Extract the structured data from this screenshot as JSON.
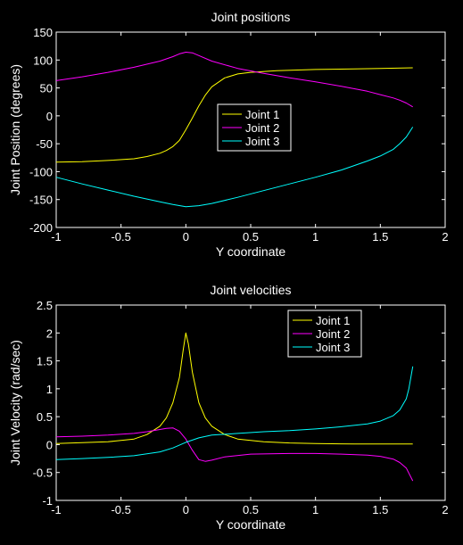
{
  "colors": {
    "background": "#000000",
    "axes": "#ffffff",
    "joint1": "#ffff00",
    "joint2": "#ff00ff",
    "joint3": "#00ffff"
  },
  "chart_data": [
    {
      "type": "line",
      "title": "Joint positions",
      "xlabel": "Y coordinate",
      "ylabel": "Joint Position (degrees)",
      "xlim": [
        -1,
        2
      ],
      "ylim": [
        -200,
        150
      ],
      "xticks": [
        -1,
        -0.5,
        0,
        0.5,
        1,
        1.5,
        2
      ],
      "yticks": [
        -200,
        -150,
        -100,
        -50,
        0,
        50,
        100,
        150
      ],
      "xtick_labels": [
        "-1",
        "-0.5",
        "0",
        "0.5",
        "1",
        "1.5",
        "2"
      ],
      "ytick_labels": [
        "-200",
        "-150",
        "-100",
        "-50",
        "0",
        "50",
        "100",
        "150"
      ],
      "legend": "center",
      "series": [
        {
          "name": "Joint 1",
          "color": "#ffff00",
          "x": [
            -1,
            -0.8,
            -0.6,
            -0.4,
            -0.3,
            -0.2,
            -0.15,
            -0.1,
            -0.05,
            0,
            0.05,
            0.1,
            0.15,
            0.2,
            0.3,
            0.4,
            0.5,
            0.7,
            1.0,
            1.3,
            1.5,
            1.75
          ],
          "y": [
            -83,
            -82,
            -80,
            -77,
            -73,
            -67,
            -62,
            -55,
            -44,
            -25,
            -4,
            18,
            37,
            52,
            68,
            75,
            78,
            81,
            83,
            84,
            85,
            86
          ]
        },
        {
          "name": "Joint 2",
          "color": "#ff00ff",
          "x": [
            -1,
            -0.8,
            -0.6,
            -0.4,
            -0.2,
            -0.1,
            -0.05,
            0,
            0.05,
            0.1,
            0.2,
            0.4,
            0.6,
            0.8,
            1.0,
            1.2,
            1.4,
            1.5,
            1.6,
            1.65,
            1.7,
            1.75
          ],
          "y": [
            63,
            70,
            78,
            87,
            98,
            106,
            111,
            114,
            113,
            108,
            98,
            85,
            76,
            68,
            61,
            53,
            44,
            38,
            32,
            28,
            23,
            16
          ]
        },
        {
          "name": "Joint 3",
          "color": "#00ffff",
          "x": [
            -1,
            -0.8,
            -0.6,
            -0.4,
            -0.2,
            -0.1,
            0,
            0.1,
            0.2,
            0.4,
            0.6,
            0.8,
            1.0,
            1.2,
            1.4,
            1.5,
            1.6,
            1.65,
            1.7,
            1.75
          ],
          "y": [
            -110,
            -122,
            -133,
            -144,
            -154,
            -159,
            -163,
            -161,
            -157,
            -146,
            -134,
            -122,
            -110,
            -97,
            -81,
            -72,
            -60,
            -50,
            -38,
            -20
          ]
        }
      ]
    },
    {
      "type": "line",
      "title": "Joint velocities",
      "xlabel": "Y coordinate",
      "ylabel": "Joint Velocity (rad/sec)",
      "xlim": [
        -1,
        2
      ],
      "ylim": [
        -1,
        2.5
      ],
      "xticks": [
        -1,
        -0.5,
        0,
        0.5,
        1,
        1.5,
        2
      ],
      "yticks": [
        -1,
        -0.5,
        0,
        0.5,
        1,
        1.5,
        2,
        2.5
      ],
      "xtick_labels": [
        "-1",
        "-0.5",
        "0",
        "0.5",
        "1",
        "1.5",
        "2"
      ],
      "ytick_labels": [
        "-1",
        "-0.5",
        "0",
        "0.5",
        "1",
        "1.5",
        "2",
        "2.5"
      ],
      "legend": "top-right",
      "series": [
        {
          "name": "Joint 1",
          "color": "#ffff00",
          "x": [
            -1,
            -0.6,
            -0.4,
            -0.3,
            -0.2,
            -0.15,
            -0.1,
            -0.05,
            -0.02,
            0,
            0.02,
            0.05,
            0.1,
            0.15,
            0.2,
            0.3,
            0.4,
            0.6,
            0.8,
            1.0,
            1.3,
            1.75
          ],
          "y": [
            0.02,
            0.05,
            0.1,
            0.18,
            0.33,
            0.48,
            0.75,
            1.2,
            1.7,
            2.0,
            1.8,
            1.3,
            0.75,
            0.48,
            0.33,
            0.18,
            0.1,
            0.05,
            0.03,
            0.02,
            0.01,
            0.01
          ]
        },
        {
          "name": "Joint 2",
          "color": "#ff00ff",
          "x": [
            -1,
            -0.8,
            -0.6,
            -0.4,
            -0.3,
            -0.2,
            -0.15,
            -0.1,
            -0.05,
            0,
            0.05,
            0.1,
            0.15,
            0.2,
            0.3,
            0.5,
            0.8,
            1.0,
            1.2,
            1.4,
            1.5,
            1.6,
            1.65,
            1.7,
            1.75
          ],
          "y": [
            0.14,
            0.15,
            0.17,
            0.2,
            0.23,
            0.27,
            0.29,
            0.3,
            0.24,
            0.1,
            -0.1,
            -0.27,
            -0.3,
            -0.28,
            -0.22,
            -0.17,
            -0.16,
            -0.16,
            -0.17,
            -0.19,
            -0.21,
            -0.26,
            -0.32,
            -0.42,
            -0.65
          ]
        },
        {
          "name": "Joint 3",
          "color": "#00ffff",
          "x": [
            -1,
            -0.8,
            -0.6,
            -0.4,
            -0.2,
            -0.1,
            0,
            0.1,
            0.2,
            0.4,
            0.6,
            0.8,
            1.0,
            1.2,
            1.4,
            1.5,
            1.6,
            1.65,
            1.7,
            1.72,
            1.75
          ],
          "y": [
            -0.27,
            -0.25,
            -0.23,
            -0.2,
            -0.13,
            -0.06,
            0.04,
            0.12,
            0.17,
            0.2,
            0.23,
            0.25,
            0.28,
            0.32,
            0.37,
            0.42,
            0.52,
            0.62,
            0.82,
            1.0,
            1.4
          ]
        }
      ]
    }
  ]
}
